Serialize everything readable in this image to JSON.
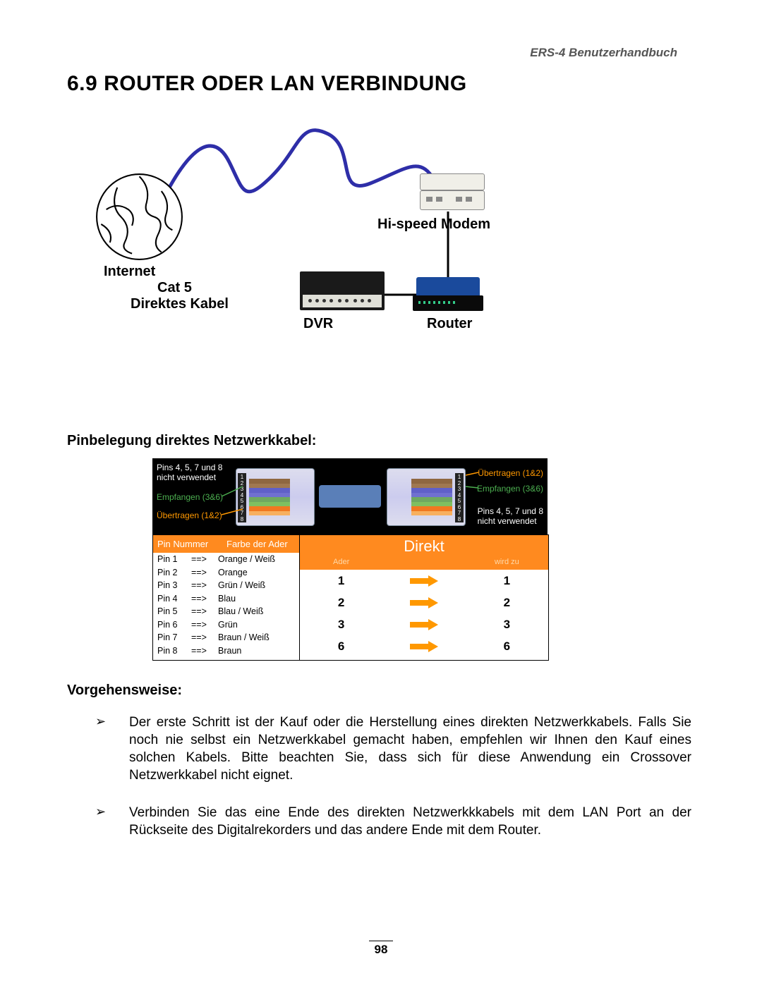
{
  "header": {
    "doc_title": "ERS-4  Benutzerhandbuch"
  },
  "section": {
    "number": "6.9",
    "title": "ROUTER ODER LAN VERBINDUNG"
  },
  "diagram": {
    "labels": {
      "internet": "Internet",
      "cat5": "Cat 5",
      "direktes_kabel": "Direktes Kabel",
      "dvr": "DVR",
      "router": "Router",
      "modem": "Hi-speed Modem"
    },
    "colors": {
      "wavy_cable": "#2e2ea8",
      "straight_cable": "#000000",
      "router_top": "#1a4a9c",
      "modem_body": "#f0efe8"
    },
    "globe_stroke": "#000000"
  },
  "subheadings": {
    "pinbelegung": "Pinbelegung direktes Netzwerkkabel:",
    "vorgehensweise": "Vorgehensweise:"
  },
  "cable": {
    "top_left_lines": [
      "Pins 4, 5, 7 und 8",
      "nicht verwendet"
    ],
    "left_green": "Empfangen (3&6)",
    "left_orange": "Übertragen (1&2)",
    "right_orange": "Übertragen (1&2)",
    "right_green": "Empfangen (3&6)",
    "bottom_right_lines": [
      "Pins 4, 5, 7 und 8",
      "nicht verwendet"
    ],
    "colors": {
      "panel_bg": "#000000",
      "header_bg": "#ff8a1f",
      "header_text": "#ffffff",
      "subheader_text": "#ffd9a8",
      "arrow_color": "#ff9800",
      "green_label": "#4caf50",
      "orange_label": "#ff9800"
    }
  },
  "pin_table": {
    "headers": [
      "Pin Nummer",
      "Farbe der Ader"
    ],
    "arrow": "==>",
    "rows": [
      {
        "pin": "Pin 1",
        "color": "Orange / Weiß"
      },
      {
        "pin": "Pin 2",
        "color": "Orange"
      },
      {
        "pin": "Pin 3",
        "color": "Grün / Weiß"
      },
      {
        "pin": "Pin 4",
        "color": "Blau"
      },
      {
        "pin": "Pin 5",
        "color": "Blau / Weiß"
      },
      {
        "pin": "Pin 6",
        "color": "Grün"
      },
      {
        "pin": "Pin 7",
        "color": "Braun / Weiß"
      },
      {
        "pin": "Pin 8",
        "color": "Braun"
      }
    ]
  },
  "direkt_table": {
    "title": "Direkt",
    "sub": [
      "Ader",
      "",
      "wird zu"
    ],
    "rows": [
      {
        "from": "1",
        "to": "1"
      },
      {
        "from": "2",
        "to": "2"
      },
      {
        "from": "3",
        "to": "3"
      },
      {
        "from": "6",
        "to": "6"
      }
    ]
  },
  "steps": [
    "Der erste Schritt ist der Kauf oder die Herstellung eines direkten Netzwerkkabels. Falls Sie noch nie selbst ein Netzwerkkabel gemacht haben, empfehlen wir Ihnen den Kauf eines solchen Kabels. Bitte beachten Sie, dass sich für diese Anwendung ein Crossover Netzwerkkabel nicht eignet.",
    "Verbinden Sie das eine Ende des direkten Netzwerkkkabels mit dem LAN Port an der Rückseite des Digitalrekorders und das andere Ende mit dem Router."
  ],
  "bullet_symbol": "➢",
  "page_number": "98"
}
